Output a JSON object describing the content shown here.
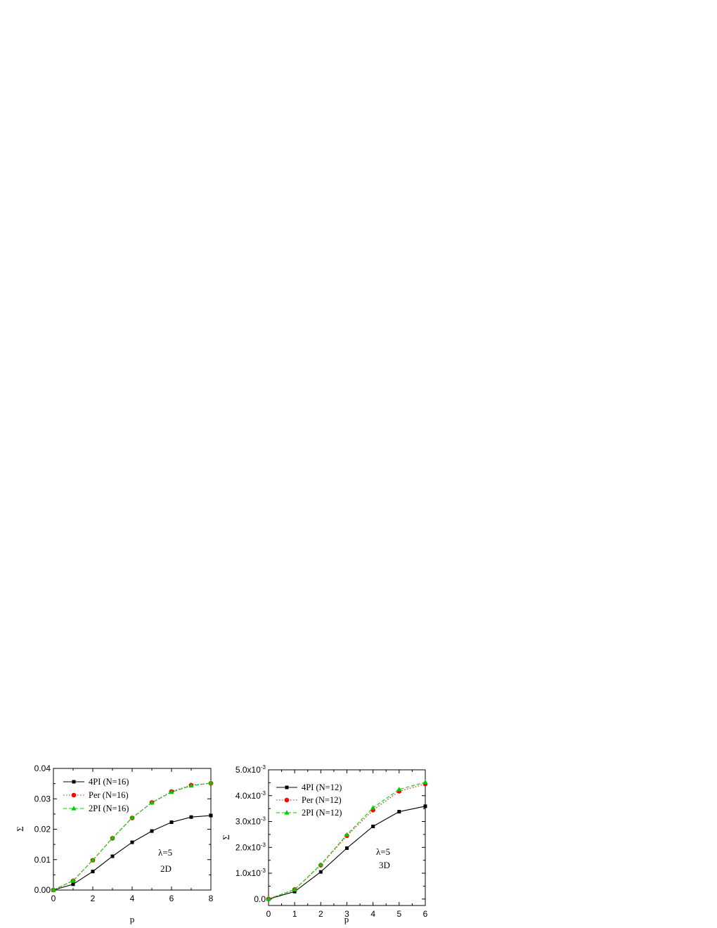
{
  "chart_data": [
    {
      "type": "line",
      "xlabel": "p",
      "ylabel": "Σ",
      "xlim": [
        0,
        8
      ],
      "ylim": [
        0,
        0.04
      ],
      "xticks": [
        "0",
        "2",
        "4",
        "6",
        "8"
      ],
      "yticks": [
        "0.00",
        "0.01",
        "0.02",
        "0.03",
        "0.04"
      ],
      "annotations": [
        "λ=5",
        "2D"
      ],
      "legend_position": "top-left",
      "x": [
        0,
        1,
        2,
        3,
        4,
        5,
        6,
        7,
        8
      ],
      "series": [
        {
          "name": "4PI (N=16)",
          "color": "#000000",
          "marker": "square",
          "line": "solid",
          "values": [
            0.0,
            0.0019,
            0.0061,
            0.0111,
            0.0157,
            0.0194,
            0.0223,
            0.024,
            0.0245
          ]
        },
        {
          "name": "Per (N=16)",
          "color": "#ff0000",
          "marker": "circle",
          "line": "dotted",
          "values": [
            0.0,
            0.003,
            0.0098,
            0.017,
            0.0237,
            0.0288,
            0.0324,
            0.0345,
            0.0351
          ]
        },
        {
          "name": "2PI (N=16)",
          "color": "#00cc00",
          "marker": "triangle",
          "line": "dashed",
          "values": [
            0.0,
            0.0031,
            0.0098,
            0.0171,
            0.0238,
            0.0287,
            0.0322,
            0.0343,
            0.0352
          ]
        }
      ]
    },
    {
      "type": "line",
      "xlabel": "p",
      "ylabel": "Σ",
      "xlim": [
        0,
        6
      ],
      "ylim": [
        -0.00025,
        0.005
      ],
      "xticks": [
        "0",
        "1",
        "2",
        "3",
        "4",
        "5",
        "6"
      ],
      "yticks": [
        {
          "mantissa": "0.0",
          "exponent": ""
        },
        {
          "mantissa": "1.0x10",
          "exponent": "-3"
        },
        {
          "mantissa": "2.0x10",
          "exponent": "-3"
        },
        {
          "mantissa": "3.0x10",
          "exponent": "-3"
        },
        {
          "mantissa": "4.0x10",
          "exponent": "-3"
        },
        {
          "mantissa": "5.0x10",
          "exponent": "-3"
        }
      ],
      "ytick_values": [
        0,
        0.001,
        0.002,
        0.003,
        0.004,
        0.005
      ],
      "annotations": [
        "λ=5",
        "3D"
      ],
      "legend_position": "top-left",
      "x": [
        0,
        1,
        2,
        3,
        4,
        5,
        6
      ],
      "series": [
        {
          "name": "4PI (N=12)",
          "color": "#000000",
          "marker": "square",
          "line": "solid",
          "values": [
            0.0,
            0.00029,
            0.00105,
            0.00197,
            0.00281,
            0.00338,
            0.00359
          ]
        },
        {
          "name": "Per (N=12)",
          "color": "#ff0000",
          "marker": "circle",
          "line": "dotted",
          "values": [
            0.0,
            0.00037,
            0.00131,
            0.00245,
            0.00344,
            0.00417,
            0.00445
          ]
        },
        {
          "name": "2PI (N=12)",
          "color": "#00cc00",
          "marker": "triangle",
          "line": "dashed",
          "values": [
            0.0,
            0.00037,
            0.00133,
            0.00249,
            0.00353,
            0.00424,
            0.00452
          ]
        }
      ]
    }
  ]
}
